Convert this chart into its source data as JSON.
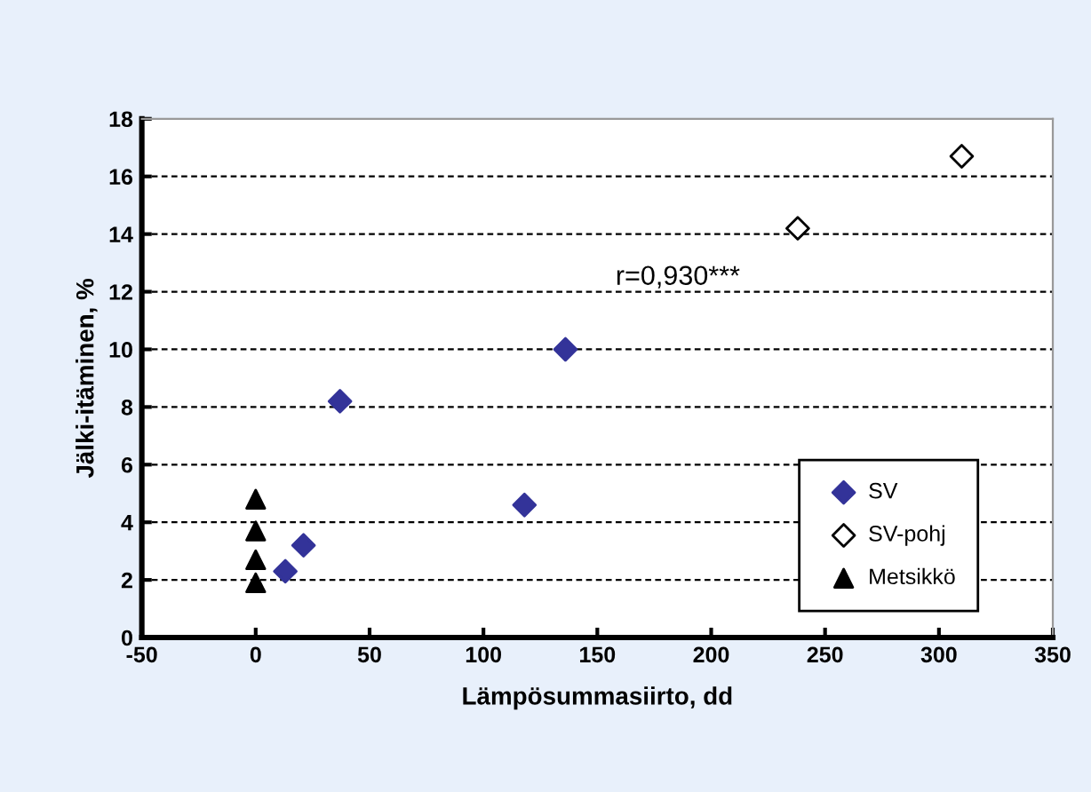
{
  "chart_data": {
    "type": "scatter",
    "xlabel": "Lämpösummasiirto, dd",
    "ylabel": "Jälki-itäminen, %",
    "xlim": [
      -50,
      350
    ],
    "xticks": [
      -50,
      0,
      50,
      100,
      150,
      200,
      250,
      300,
      350
    ],
    "ylim": [
      0,
      18
    ],
    "yticks": [
      0,
      2,
      4,
      6,
      8,
      10,
      12,
      14,
      16,
      18
    ],
    "grid": "y",
    "legend": "bottom right",
    "annotations": [
      "r=0,930***"
    ],
    "series": [
      {
        "name": "SV",
        "color": "#333399",
        "marker": "diamond",
        "x": [
          13,
          21,
          37,
          118,
          136
        ],
        "values": [
          2.3,
          3.2,
          8.2,
          4.6,
          10.0
        ]
      },
      {
        "name": "SV-pohj",
        "color": "#ffffff",
        "marker": "diamond",
        "x": [
          238,
          310
        ],
        "values": [
          14.2,
          16.7
        ]
      },
      {
        "name": "Metsikkö",
        "color": "#000000",
        "marker": "triangle",
        "x": [
          0,
          0,
          0,
          0
        ],
        "values": [
          1.9,
          2.7,
          3.7,
          4.8
        ]
      }
    ]
  }
}
